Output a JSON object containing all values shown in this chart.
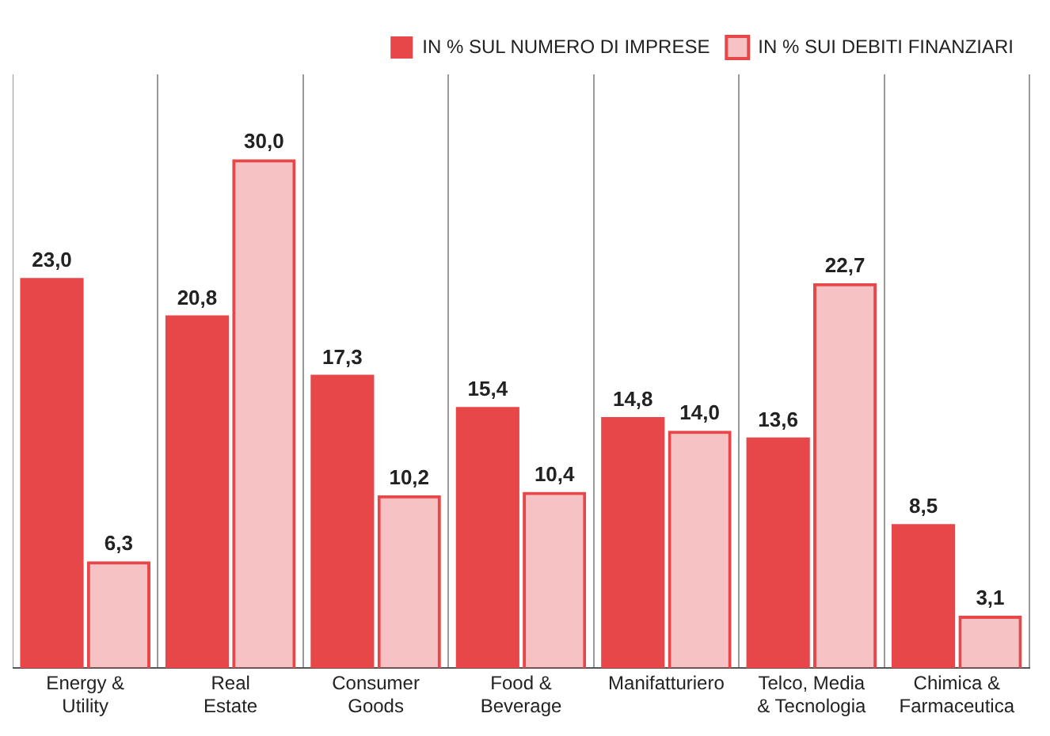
{
  "chart_data": {
    "type": "bar",
    "categories": [
      "Energy &\nUtility",
      "Real\nEstate",
      "Consumer\nGoods",
      "Food &\nBeverage",
      "Manifatturiero",
      "Telco, Media\n& Tecnologia",
      "Chimica &\nFarmaceutica"
    ],
    "series": [
      {
        "name": "IN % SUL NUMERO DI IMPRESE",
        "color": "#e8474a",
        "values": [
          23.0,
          20.8,
          17.3,
          15.4,
          14.8,
          13.6,
          8.5
        ],
        "value_labels": [
          "23,0",
          "20,8",
          "17,3",
          "15,4",
          "14,8",
          "13,6",
          "8,5"
        ]
      },
      {
        "name": "IN % SUI DEBITI FINANZIARI",
        "color": "#e8474a",
        "values": [
          6.3,
          30.0,
          10.2,
          10.4,
          14.0,
          22.7,
          3.1
        ],
        "value_labels": [
          "6,3",
          "30,0",
          "10,2",
          "10,4",
          "14,0",
          "22,7",
          "3,1"
        ]
      }
    ],
    "grid": "x",
    "legend": "top right"
  }
}
